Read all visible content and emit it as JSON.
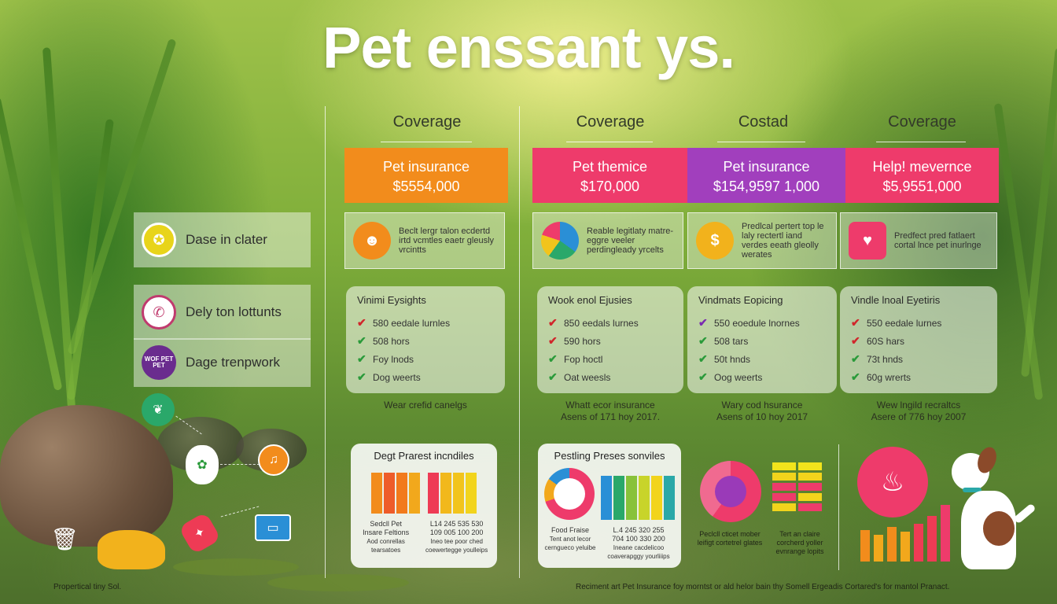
{
  "title": "Pet enssant ys.",
  "column_headers": [
    "Coverage",
    "Coverage",
    "Costad",
    "Coverage"
  ],
  "banners": [
    {
      "line1": "Pet insurance",
      "line2": "$5554,000",
      "color": "#f28c1c"
    },
    {
      "line1": "Pet themice",
      "line2": "$170,000",
      "color": "#ee3b6b"
    },
    {
      "line1": "Pet insurance",
      "line2": "$154,9597 1,000",
      "color": "#a13fbd"
    },
    {
      "line1": "Help! mevernce",
      "line2": "$5,9551,000",
      "color": "#ee3b6b"
    }
  ],
  "row_panels": [
    {
      "text": "Beclt lergr talon ecdertd irtd vcmtles eaetr gleusly vrcintts",
      "icon": "person-icon",
      "icon_color": "#f28c1c"
    },
    {
      "text": "Reable legitlaty matre-eggre veeler perdingleady yrcelts",
      "icon": "pie-chart-icon",
      "icon_color": "#2a8fd6"
    },
    {
      "text": "Predlcal pertert top le laly rectertl iand verdes eeath gleolly werates",
      "icon": "coin-stack-icon",
      "icon_color": "#f2b21c"
    },
    {
      "text": "Predfect pred fatlaert cortal lnce pet inurlnge",
      "icon": "pet-doctor-icon",
      "icon_color": "#ee3b6b"
    }
  ],
  "side_items": [
    {
      "label": "Dase in clater",
      "icon": "medal-icon",
      "color": "#e8d41a"
    },
    {
      "label": "Dely ton lottunts",
      "icon": "phone-icon",
      "color": "#c03a6e"
    },
    {
      "label": "Dage trenpwork",
      "icon": "wof-pet-badge-icon",
      "icon_text": "WOF PET PET",
      "color": "#6a2c8e"
    }
  ],
  "cards": [
    {
      "title": "Vinimi Eysights",
      "items": [
        {
          "mark": "✔",
          "color": "#d0262b",
          "text": "580 eedale lurnles"
        },
        {
          "mark": "✔",
          "color": "#2a9a3a",
          "text": "508 hors"
        },
        {
          "mark": "✔",
          "color": "#2a9a3a",
          "text": "Foy lnods"
        },
        {
          "mark": "✔",
          "color": "#2a9a3a",
          "text": "Dog weerts"
        }
      ]
    },
    {
      "title": "Wook enol Ejusies",
      "items": [
        {
          "mark": "✔",
          "color": "#d0262b",
          "text": "850 eedals lurnes"
        },
        {
          "mark": "✔",
          "color": "#d0262b",
          "text": "590 hors"
        },
        {
          "mark": "✔",
          "color": "#2a9a3a",
          "text": "Fop hoctl"
        },
        {
          "mark": "✔",
          "color": "#2a9a3a",
          "text": "Oat weesls"
        }
      ]
    },
    {
      "title": "Vindmats Eopicing",
      "items": [
        {
          "mark": "✔",
          "color": "#7a2ab0",
          "text": "550 eoedule lnornes"
        },
        {
          "mark": "✔",
          "color": "#2a9a3a",
          "text": "508 tars"
        },
        {
          "mark": "✔",
          "color": "#2a9a3a",
          "text": "50t hnds"
        },
        {
          "mark": "✔",
          "color": "#2a9a3a",
          "text": "Oog weerts"
        }
      ]
    },
    {
      "title": "Vindle lnoal Eyetiris",
      "items": [
        {
          "mark": "✔",
          "color": "#d0262b",
          "text": "550 eedale lurnes"
        },
        {
          "mark": "✔",
          "color": "#d0262b",
          "text": "60S hars"
        },
        {
          "mark": "✔",
          "color": "#2a9a3a",
          "text": "73t hnds"
        },
        {
          "mark": "✔",
          "color": "#2a9a3a",
          "text": "60g wrerts"
        }
      ]
    }
  ],
  "captions": [
    {
      "l1": "Wear crefid canelgs",
      "l2": ""
    },
    {
      "l1": "Whatt ecor insurance",
      "l2": "Asens of 171 hoy 2017."
    },
    {
      "l1": "Wary cod hsurance",
      "l2": "Asens of 10 hoy 2017"
    },
    {
      "l1": "Wew lngild recraltcs",
      "l2": "Asere of 776 hoy 2007"
    }
  ],
  "chart_card_1": {
    "title": "Degt Prarest incndiles",
    "left_label": "Sedcll Pet",
    "left_label2": "Insare Feltions",
    "left_sub": "Aod conrellas tearsatoes",
    "nums1": "L14  245  535  530",
    "nums2": "109  005  100  200",
    "sub_right": "Ineo tee poor ched coewertegge youlleips",
    "colors": [
      "#f28c1c",
      "#ee5c2a",
      "#f2a81c",
      "#ee3b55",
      "#f27a1c",
      "#f2c41c",
      "#f2b81c",
      "#f2d41c"
    ]
  },
  "chart_card_2": {
    "title": "Pestling Preses sonviles",
    "donut_label": "Food Fraise",
    "donut_sub": "Tent anot lecor cerngueco yeluibe",
    "nums1": "L.4  245  320  255",
    "nums2": "704  100  330  200",
    "sub_right": "Ineane cacdelicoo coaverapggy yourliiips",
    "colors": [
      "#2a8fd6",
      "#2aa86a",
      "#88c23a",
      "#c8d42a",
      "#ee3b6b",
      "#2aa8a8",
      "#f2d41c"
    ]
  },
  "chart_card_3": {
    "left_text": "Peclcll cticet mober leifigt cortetrel glates",
    "right_text": "Tert an claire corcherd yoller evnrange lopits"
  },
  "footer_left": "Propertical tiny Sol.",
  "footer_right": "Reciment art Pet Insurance foy morntst or ald helor bain thy Somell Ergeadis Cortared's for mantol Pranact."
}
